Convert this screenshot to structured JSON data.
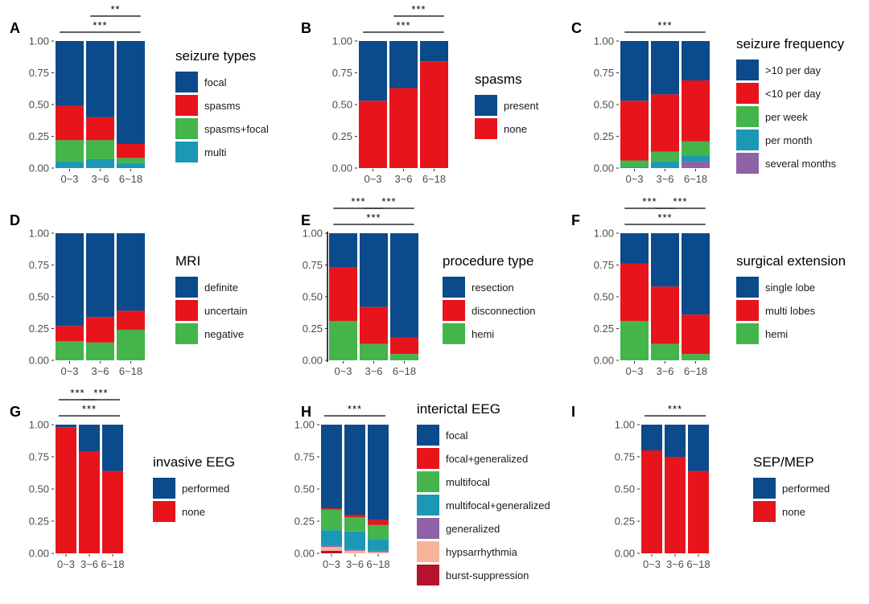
{
  "colors": {
    "focal": "#0b4a8b",
    "red": "#e8141b",
    "green": "#43b54a",
    "teal": "#1a98b5",
    "purple": "#8e62a6",
    "peach": "#f8b39b",
    "darkred": "#b5132d"
  },
  "chart_data": [
    {
      "panel": "A",
      "type": "bar",
      "stacked": true,
      "categories": [
        "0~3",
        "3~6",
        "6~18"
      ],
      "ylim": [
        0,
        1
      ],
      "yticks": [
        "0.00",
        "0.25",
        "0.50",
        "0.75",
        "1.00"
      ],
      "legend_title": "seizure types",
      "series": [
        {
          "name": "multi",
          "color": "#1a98b5",
          "values": [
            0.05,
            0.07,
            0.04
          ]
        },
        {
          "name": "spasms+focal",
          "color": "#43b54a",
          "values": [
            0.17,
            0.15,
            0.04
          ]
        },
        {
          "name": "spasms",
          "color": "#e8141b",
          "values": [
            0.27,
            0.18,
            0.11
          ]
        },
        {
          "name": "focal",
          "color": "#0b4a8b",
          "values": [
            0.51,
            0.6,
            0.81
          ]
        }
      ],
      "legend_order": [
        "focal",
        "spasms",
        "spasms+focal",
        "multi"
      ],
      "significance": [
        {
          "from": 0,
          "to": 2,
          "label": "***",
          "level": 0
        },
        {
          "from": 1,
          "to": 2,
          "label": "**",
          "level": 1
        }
      ]
    },
    {
      "panel": "B",
      "type": "bar",
      "stacked": true,
      "categories": [
        "0~3",
        "3~6",
        "6~18"
      ],
      "ylim": [
        0,
        1
      ],
      "yticks": [
        "0.00",
        "0.25",
        "0.50",
        "0.75",
        "1.00"
      ],
      "legend_title": "spasms",
      "series": [
        {
          "name": "none",
          "color": "#e8141b",
          "values": [
            0.53,
            0.63,
            0.84
          ]
        },
        {
          "name": "present",
          "color": "#0b4a8b",
          "values": [
            0.47,
            0.37,
            0.16
          ]
        }
      ],
      "legend_order": [
        "present",
        "none"
      ],
      "significance": [
        {
          "from": 0,
          "to": 2,
          "label": "***",
          "level": 0
        },
        {
          "from": 1,
          "to": 2,
          "label": "***",
          "level": 1
        }
      ]
    },
    {
      "panel": "C",
      "type": "bar",
      "stacked": true,
      "categories": [
        "0~3",
        "3~6",
        "6~18"
      ],
      "ylim": [
        0,
        1
      ],
      "yticks": [
        "0.00",
        "0.25",
        "0.50",
        "0.75",
        "1.00"
      ],
      "legend_title": "seizure frequency",
      "series": [
        {
          "name": "several months",
          "color": "#8e62a6",
          "values": [
            0.0,
            0.0,
            0.05
          ]
        },
        {
          "name": "per month",
          "color": "#1a98b5",
          "values": [
            0.01,
            0.05,
            0.05
          ]
        },
        {
          "name": "per week",
          "color": "#43b54a",
          "values": [
            0.05,
            0.08,
            0.11
          ]
        },
        {
          "name": "<10 per day",
          "color": "#e8141b",
          "values": [
            0.47,
            0.45,
            0.48
          ]
        },
        {
          "name": ">10 per day",
          "color": "#0b4a8b",
          "values": [
            0.47,
            0.42,
            0.31
          ]
        }
      ],
      "legend_order": [
        ">10 per day",
        "<10 per day",
        "per week",
        "per month",
        "several months"
      ],
      "significance": [
        {
          "from": 0,
          "to": 2,
          "label": "***",
          "level": 0
        }
      ]
    },
    {
      "panel": "D",
      "type": "bar",
      "stacked": true,
      "categories": [
        "0~3",
        "3~6",
        "6~18"
      ],
      "ylim": [
        0,
        1
      ],
      "yticks": [
        "0.00",
        "0.25",
        "0.50",
        "0.75",
        "1.00"
      ],
      "legend_title": "MRI",
      "series": [
        {
          "name": "negative",
          "color": "#43b54a",
          "values": [
            0.15,
            0.14,
            0.24
          ]
        },
        {
          "name": "uncertain",
          "color": "#e8141b",
          "values": [
            0.12,
            0.2,
            0.15
          ]
        },
        {
          "name": "definite",
          "color": "#0b4a8b",
          "values": [
            0.73,
            0.66,
            0.61
          ]
        }
      ],
      "legend_order": [
        "definite",
        "uncertain",
        "negative"
      ],
      "significance": []
    },
    {
      "panel": "E",
      "type": "bar",
      "stacked": true,
      "categories": [
        "0~3",
        "3~6",
        "6~18"
      ],
      "ylim": [
        0,
        1
      ],
      "yticks": [
        "0.00",
        "0.25",
        "0.50",
        "0.75",
        "1.00"
      ],
      "legend_title": "procedure type",
      "series": [
        {
          "name": "hemi",
          "color": "#43b54a",
          "values": [
            0.31,
            0.13,
            0.05
          ]
        },
        {
          "name": "disconnection",
          "color": "#e8141b",
          "values": [
            0.42,
            0.29,
            0.13
          ]
        },
        {
          "name": "resection",
          "color": "#0b4a8b",
          "values": [
            0.27,
            0.58,
            0.82
          ]
        }
      ],
      "legend_order": [
        "resection",
        "disconnection",
        "hemi"
      ],
      "significance": [
        {
          "from": 0,
          "to": 2,
          "label": "***",
          "level": 0
        },
        {
          "from": 0,
          "to": 1,
          "label": "***",
          "level": 1
        },
        {
          "from": 1,
          "to": 2,
          "label": "***",
          "level": 1
        }
      ]
    },
    {
      "panel": "F",
      "type": "bar",
      "stacked": true,
      "categories": [
        "0~3",
        "3~6",
        "6~18"
      ],
      "ylim": [
        0,
        1
      ],
      "yticks": [
        "0.00",
        "0.25",
        "0.50",
        "0.75",
        "1.00"
      ],
      "legend_title": "surgical extension",
      "series": [
        {
          "name": "hemi",
          "color": "#43b54a",
          "values": [
            0.31,
            0.13,
            0.05
          ]
        },
        {
          "name": "multi lobes",
          "color": "#e8141b",
          "values": [
            0.45,
            0.45,
            0.31
          ]
        },
        {
          "name": "single lobe",
          "color": "#0b4a8b",
          "values": [
            0.24,
            0.42,
            0.64
          ]
        }
      ],
      "legend_order": [
        "single lobe",
        "multi lobes",
        "hemi"
      ],
      "significance": [
        {
          "from": 0,
          "to": 2,
          "label": "***",
          "level": 0
        },
        {
          "from": 0,
          "to": 1,
          "label": "***",
          "level": 1
        },
        {
          "from": 1,
          "to": 2,
          "label": "***",
          "level": 1
        }
      ]
    },
    {
      "panel": "G",
      "type": "bar",
      "stacked": true,
      "categories": [
        "0~3",
        "3~6",
        "6~18"
      ],
      "ylim": [
        0,
        1
      ],
      "yticks": [
        "0.00",
        "0.25",
        "0.50",
        "0.75",
        "1.00"
      ],
      "legend_title": "invasive EEG",
      "series": [
        {
          "name": "none",
          "color": "#e8141b",
          "values": [
            0.98,
            0.79,
            0.64
          ]
        },
        {
          "name": "performed",
          "color": "#0b4a8b",
          "values": [
            0.02,
            0.21,
            0.36
          ]
        }
      ],
      "legend_order": [
        "performed",
        "none"
      ],
      "significance": [
        {
          "from": 0,
          "to": 2,
          "label": "***",
          "level": 0
        },
        {
          "from": 0,
          "to": 1,
          "label": "***",
          "level": 1
        },
        {
          "from": 1,
          "to": 2,
          "label": "***",
          "level": 1
        }
      ]
    },
    {
      "panel": "H",
      "type": "bar",
      "stacked": true,
      "categories": [
        "0~3",
        "3~6",
        "6~18"
      ],
      "ylim": [
        0,
        1
      ],
      "yticks": [
        "0.00",
        "0.25",
        "0.50",
        "0.75",
        "1.00"
      ],
      "legend_title": "interictal EEG",
      "series": [
        {
          "name": "burst-suppression",
          "color": "#b5132d",
          "values": [
            0.02,
            0.0,
            0.0
          ]
        },
        {
          "name": "hypsarrhythmia",
          "color": "#f8b39b",
          "values": [
            0.03,
            0.02,
            0.01
          ]
        },
        {
          "name": "generalized",
          "color": "#8e62a6",
          "values": [
            0.01,
            0.01,
            0.01
          ]
        },
        {
          "name": "multifocal+generalized",
          "color": "#1a98b5",
          "values": [
            0.12,
            0.14,
            0.09
          ]
        },
        {
          "name": "multifocal",
          "color": "#43b54a",
          "values": [
            0.16,
            0.11,
            0.11
          ]
        },
        {
          "name": "focal+generalized",
          "color": "#e8141b",
          "values": [
            0.01,
            0.02,
            0.04
          ]
        },
        {
          "name": "focal",
          "color": "#0b4a8b",
          "values": [
            0.65,
            0.7,
            0.74
          ]
        }
      ],
      "legend_order": [
        "focal",
        "focal+generalized",
        "multifocal",
        "multifocal+generalized",
        "generalized",
        "hypsarrhythmia",
        "burst-suppression"
      ],
      "significance": [
        {
          "from": 0,
          "to": 2,
          "label": "***",
          "level": 0
        }
      ]
    },
    {
      "panel": "I",
      "type": "bar",
      "stacked": true,
      "categories": [
        "0~3",
        "3~6",
        "6~18"
      ],
      "ylim": [
        0,
        1
      ],
      "yticks": [
        "0.00",
        "0.25",
        "0.50",
        "0.75",
        "1.00"
      ],
      "legend_title": "SEP/MEP",
      "series": [
        {
          "name": "none",
          "color": "#e8141b",
          "values": [
            0.8,
            0.75,
            0.64
          ]
        },
        {
          "name": "performed",
          "color": "#0b4a8b",
          "values": [
            0.2,
            0.25,
            0.36
          ]
        }
      ],
      "legend_order": [
        "performed",
        "none"
      ],
      "significance": [
        {
          "from": 0,
          "to": 2,
          "label": "***",
          "level": 0
        }
      ]
    }
  ]
}
